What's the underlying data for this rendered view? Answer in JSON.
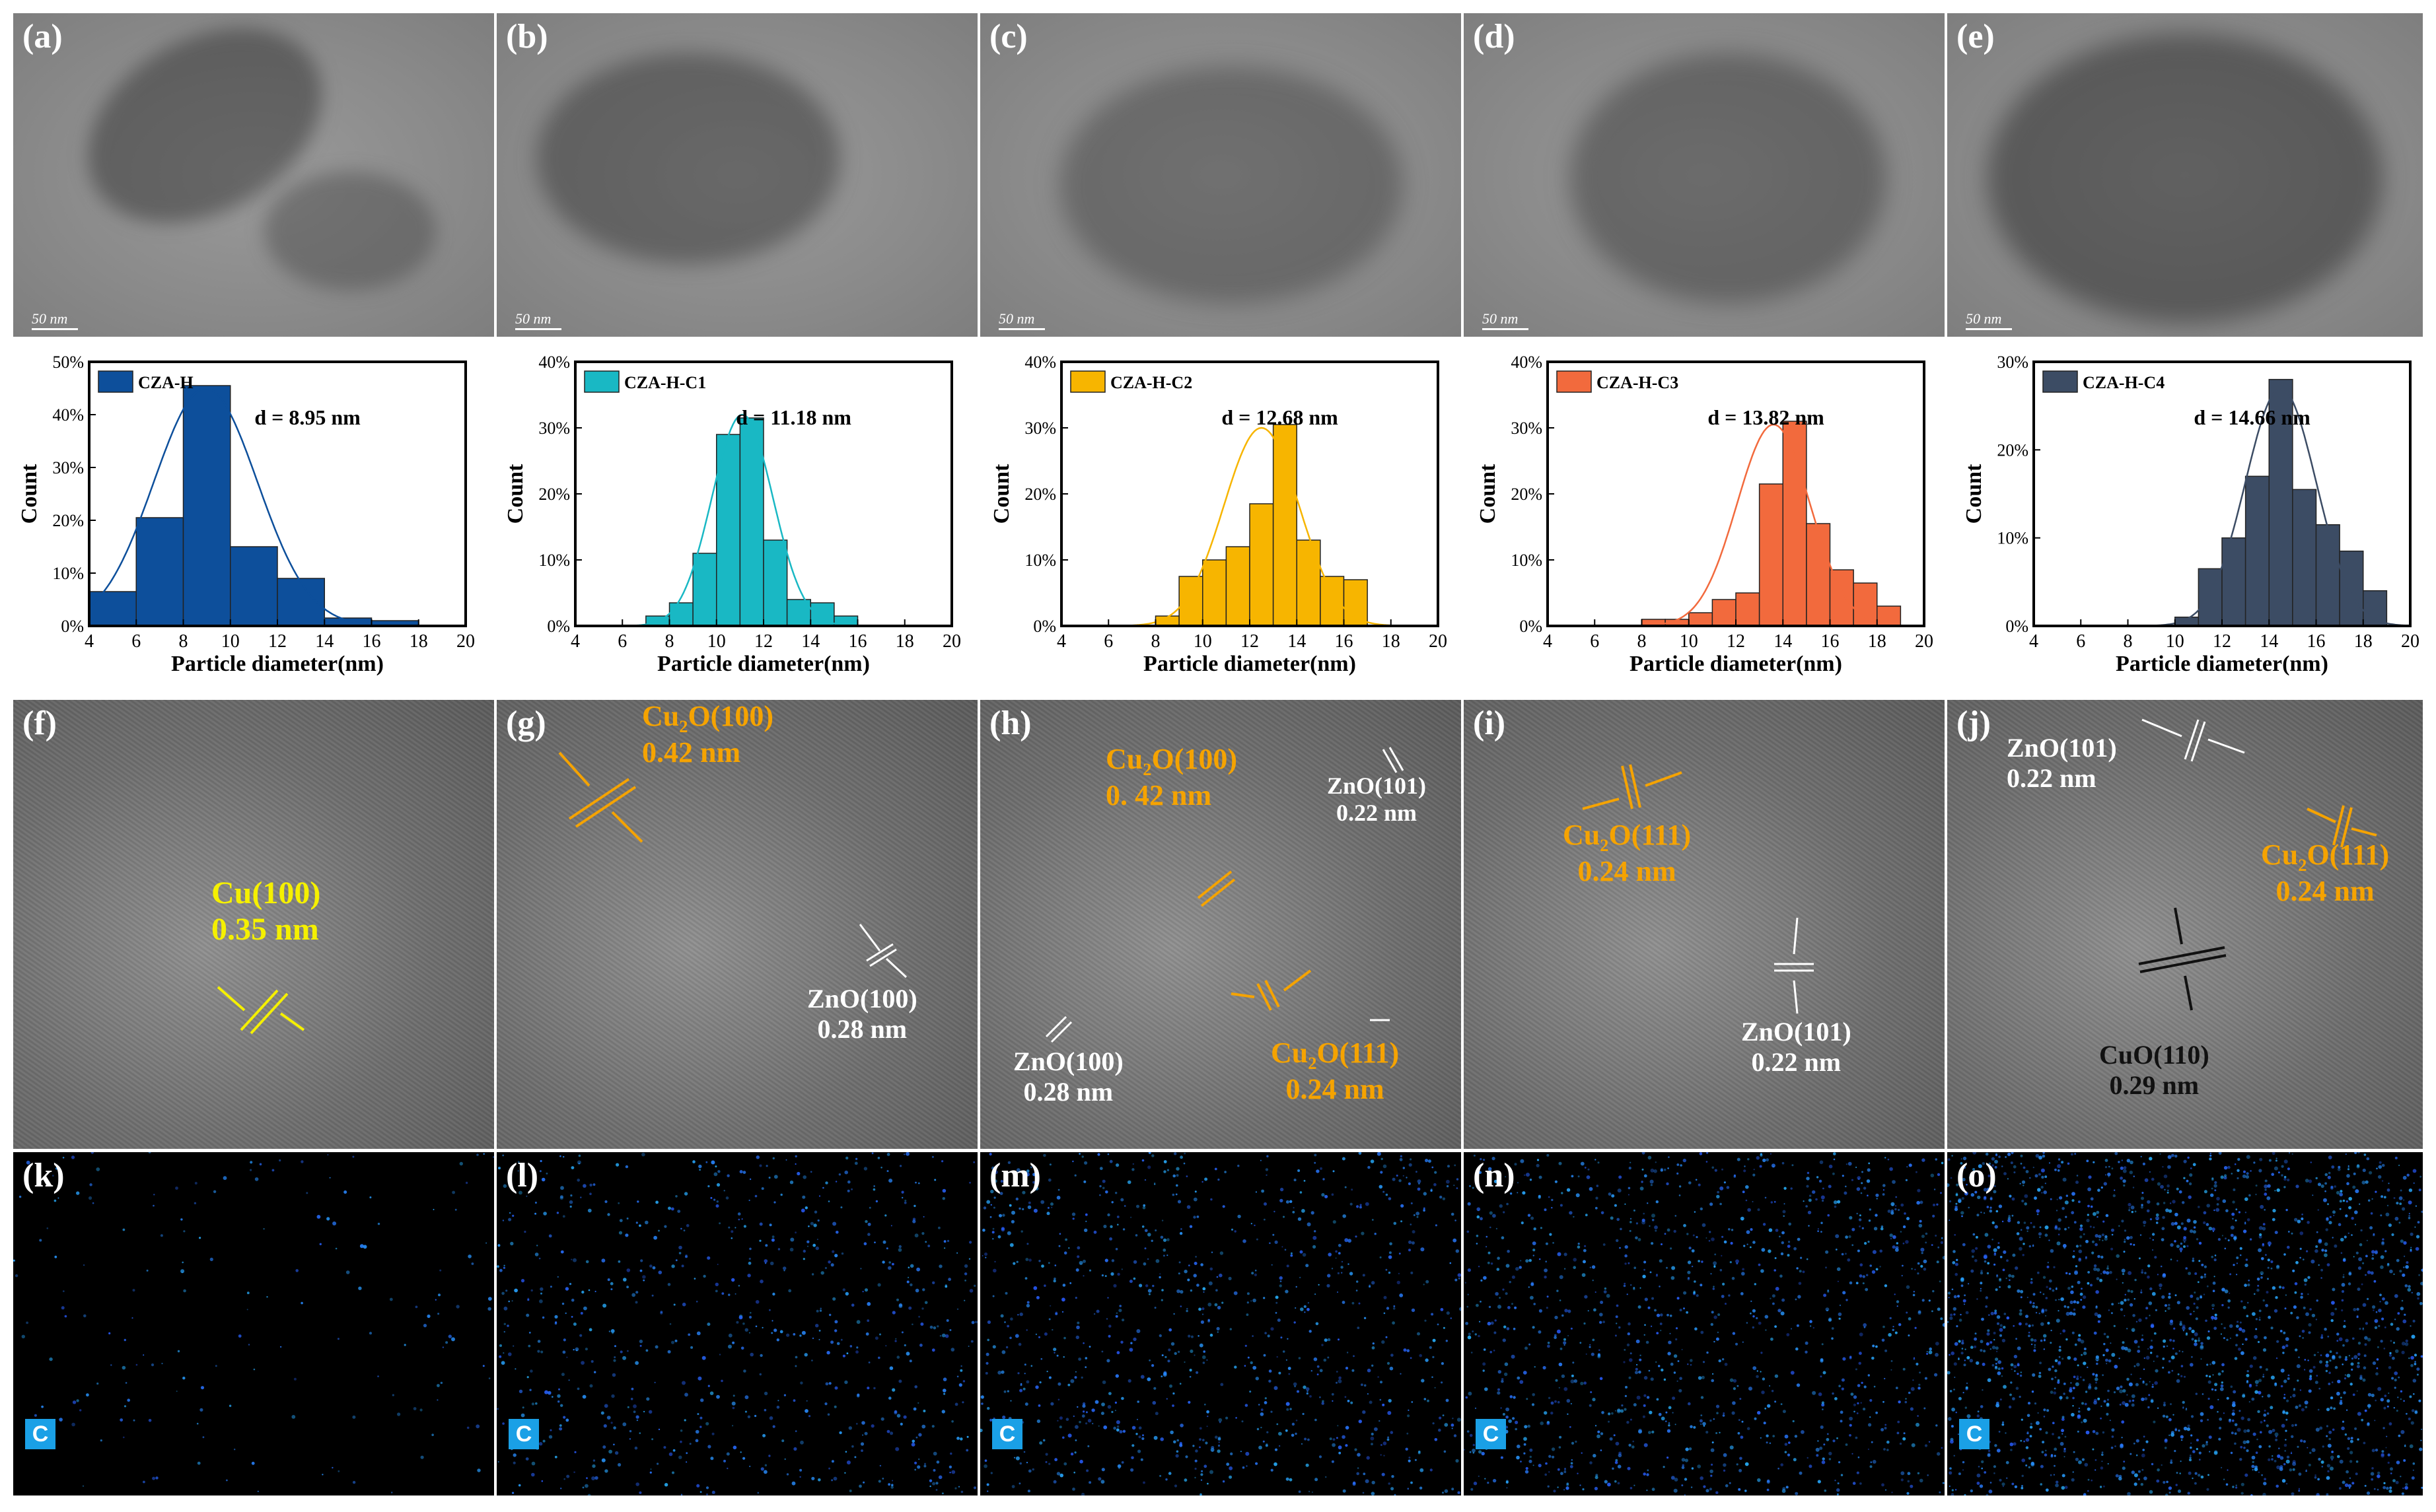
{
  "tem_panels": [
    {
      "label": "(a)",
      "scale": "50 nm"
    },
    {
      "label": "(b)",
      "scale": "50 nm"
    },
    {
      "label": "(c)",
      "scale": "50 nm"
    },
    {
      "label": "(d)",
      "scale": "50 nm"
    },
    {
      "label": "(e)",
      "scale": "50 nm"
    }
  ],
  "chart_data": [
    {
      "type": "bar",
      "legend": "CZA-H",
      "color": "#0d4f9b",
      "annotation": "d = 8.95 nm",
      "xlabel": "Particle diameter(nm)",
      "ylabel": "Count",
      "xlim": [
        4,
        20
      ],
      "ylim": [
        0,
        50
      ],
      "xticks": [
        4,
        6,
        8,
        10,
        12,
        14,
        16,
        18,
        20
      ],
      "yticks": [
        "0%",
        "10%",
        "20%",
        "30%",
        "40%",
        "50%"
      ],
      "bin_width": 2,
      "bins": [
        4,
        6,
        8,
        10,
        12,
        14,
        16
      ],
      "values": [
        6.5,
        20.5,
        45.5,
        15,
        9,
        1.5,
        1
      ],
      "fit": {
        "mean": 8.95,
        "sigma": 2.2,
        "peak": 45
      }
    },
    {
      "type": "bar",
      "legend": "CZA-H-C1",
      "color": "#19b8c4",
      "annotation": "d = 11.18 nm",
      "xlabel": "Particle diameter(nm)",
      "ylabel": "Count",
      "xlim": [
        4,
        20
      ],
      "ylim": [
        0,
        40
      ],
      "xticks": [
        4,
        6,
        8,
        10,
        12,
        14,
        16,
        18,
        20
      ],
      "yticks": [
        "0%",
        "10%",
        "20%",
        "30%",
        "40%"
      ],
      "bin_width": 1,
      "bins": [
        7,
        8,
        9,
        10,
        11,
        12,
        13,
        14,
        15
      ],
      "values": [
        1.5,
        3.5,
        11,
        29,
        31.5,
        13,
        4,
        3.5,
        1.5
      ],
      "fit": {
        "mean": 11.1,
        "sigma": 1.3,
        "peak": 32
      }
    },
    {
      "type": "bar",
      "legend": "CZA-H-C2",
      "color": "#f7b500",
      "annotation": "d = 12.68 nm",
      "xlabel": "Particle diameter(nm)",
      "ylabel": "Count",
      "xlim": [
        4,
        20
      ],
      "ylim": [
        0,
        40
      ],
      "xticks": [
        4,
        6,
        8,
        10,
        12,
        14,
        16,
        18,
        20
      ],
      "yticks": [
        "0%",
        "10%",
        "20%",
        "30%",
        "40%"
      ],
      "bin_width": 1,
      "bins": [
        8,
        9,
        10,
        11,
        12,
        13,
        14,
        15,
        16
      ],
      "values": [
        1.5,
        7.5,
        10,
        12,
        18.5,
        30.5,
        13,
        7.5,
        7
      ],
      "fit": {
        "mean": 12.5,
        "sigma": 1.6,
        "peak": 30
      }
    },
    {
      "type": "bar",
      "legend": "CZA-H-C3",
      "color": "#f26a3d",
      "annotation": "d = 13.82 nm",
      "xlabel": "Particle diameter(nm)",
      "ylabel": "Count",
      "xlim": [
        4,
        20
      ],
      "ylim": [
        0,
        40
      ],
      "xticks": [
        4,
        6,
        8,
        10,
        12,
        14,
        16,
        18,
        20
      ],
      "yticks": [
        "0%",
        "10%",
        "20%",
        "30%",
        "40%"
      ],
      "bin_width": 1,
      "bins": [
        8,
        9,
        10,
        11,
        12,
        13,
        14,
        15,
        16,
        17,
        18
      ],
      "values": [
        1,
        1,
        2,
        4,
        5,
        21.5,
        31,
        15.5,
        8.5,
        6.5,
        3
      ],
      "fit": {
        "mean": 13.6,
        "sigma": 1.55,
        "peak": 30.5
      }
    },
    {
      "type": "bar",
      "legend": "CZA-H-C4",
      "color": "#3c4c64",
      "annotation": "d = 14.66 nm",
      "xlabel": "Particle diameter(nm)",
      "ylabel": "Count",
      "xlim": [
        4,
        20
      ],
      "ylim": [
        0,
        30
      ],
      "xticks": [
        4,
        6,
        8,
        10,
        12,
        14,
        16,
        18,
        20
      ],
      "yticks": [
        "0%",
        "10%",
        "20%",
        "30%"
      ],
      "bin_width": 1,
      "bins": [
        10,
        11,
        12,
        13,
        14,
        15,
        16,
        17,
        18
      ],
      "values": [
        1,
        6.5,
        10,
        17,
        28,
        15.5,
        11.5,
        8.5,
        4
      ],
      "fit": {
        "mean": 14.5,
        "sigma": 1.5,
        "peak": 27
      }
    }
  ],
  "hr_panels": [
    {
      "label": "(f)",
      "annotations": [
        {
          "t1": "Cu(100)",
          "t2": "0.35 nm"
        }
      ]
    },
    {
      "label": "(g)",
      "annotations": [
        {
          "a": "Cu",
          "sub": "2",
          "b": "O(100)",
          "t2": "0.42 nm"
        },
        {
          "t1": "ZnO(100)",
          "t2": "0.28 nm"
        }
      ]
    },
    {
      "label": "(h)",
      "annotations": [
        {
          "a": "Cu",
          "sub": "2",
          "b": "O(100)",
          "t2": "0. 42 nm"
        },
        {
          "t1": "ZnO(101)",
          "t2": "0.22 nm"
        },
        {
          "t1": "ZnO(100)",
          "t2": "0.28 nm"
        },
        {
          "a": "Cu",
          "sub": "2",
          "b": "O(111)",
          "t2": "0.24 nm"
        }
      ]
    },
    {
      "label": "(i)",
      "annotations": [
        {
          "a": "Cu",
          "sub": "2",
          "b": "O(111)",
          "t2": "0.24 nm"
        },
        {
          "t1": "ZnO(101)",
          "t2": "0.22 nm"
        }
      ]
    },
    {
      "label": "(j)",
      "annotations": [
        {
          "t1": "ZnO(101)",
          "t2": "0.22 nm"
        },
        {
          "a": "Cu",
          "sub": "2",
          "b": "O(111)",
          "t2": "0.24 nm"
        },
        {
          "t1": "CuO(110)",
          "t2": "0.29 nm"
        }
      ]
    }
  ],
  "eds_panels": [
    {
      "label": "(k)",
      "element": "C",
      "intensity": 0.08
    },
    {
      "label": "(l)",
      "element": "C",
      "intensity": 0.35
    },
    {
      "label": "(m)",
      "element": "C",
      "intensity": 0.45
    },
    {
      "label": "(n)",
      "element": "C",
      "intensity": 0.55
    },
    {
      "label": "(o)",
      "element": "C",
      "intensity": 0.95
    }
  ]
}
